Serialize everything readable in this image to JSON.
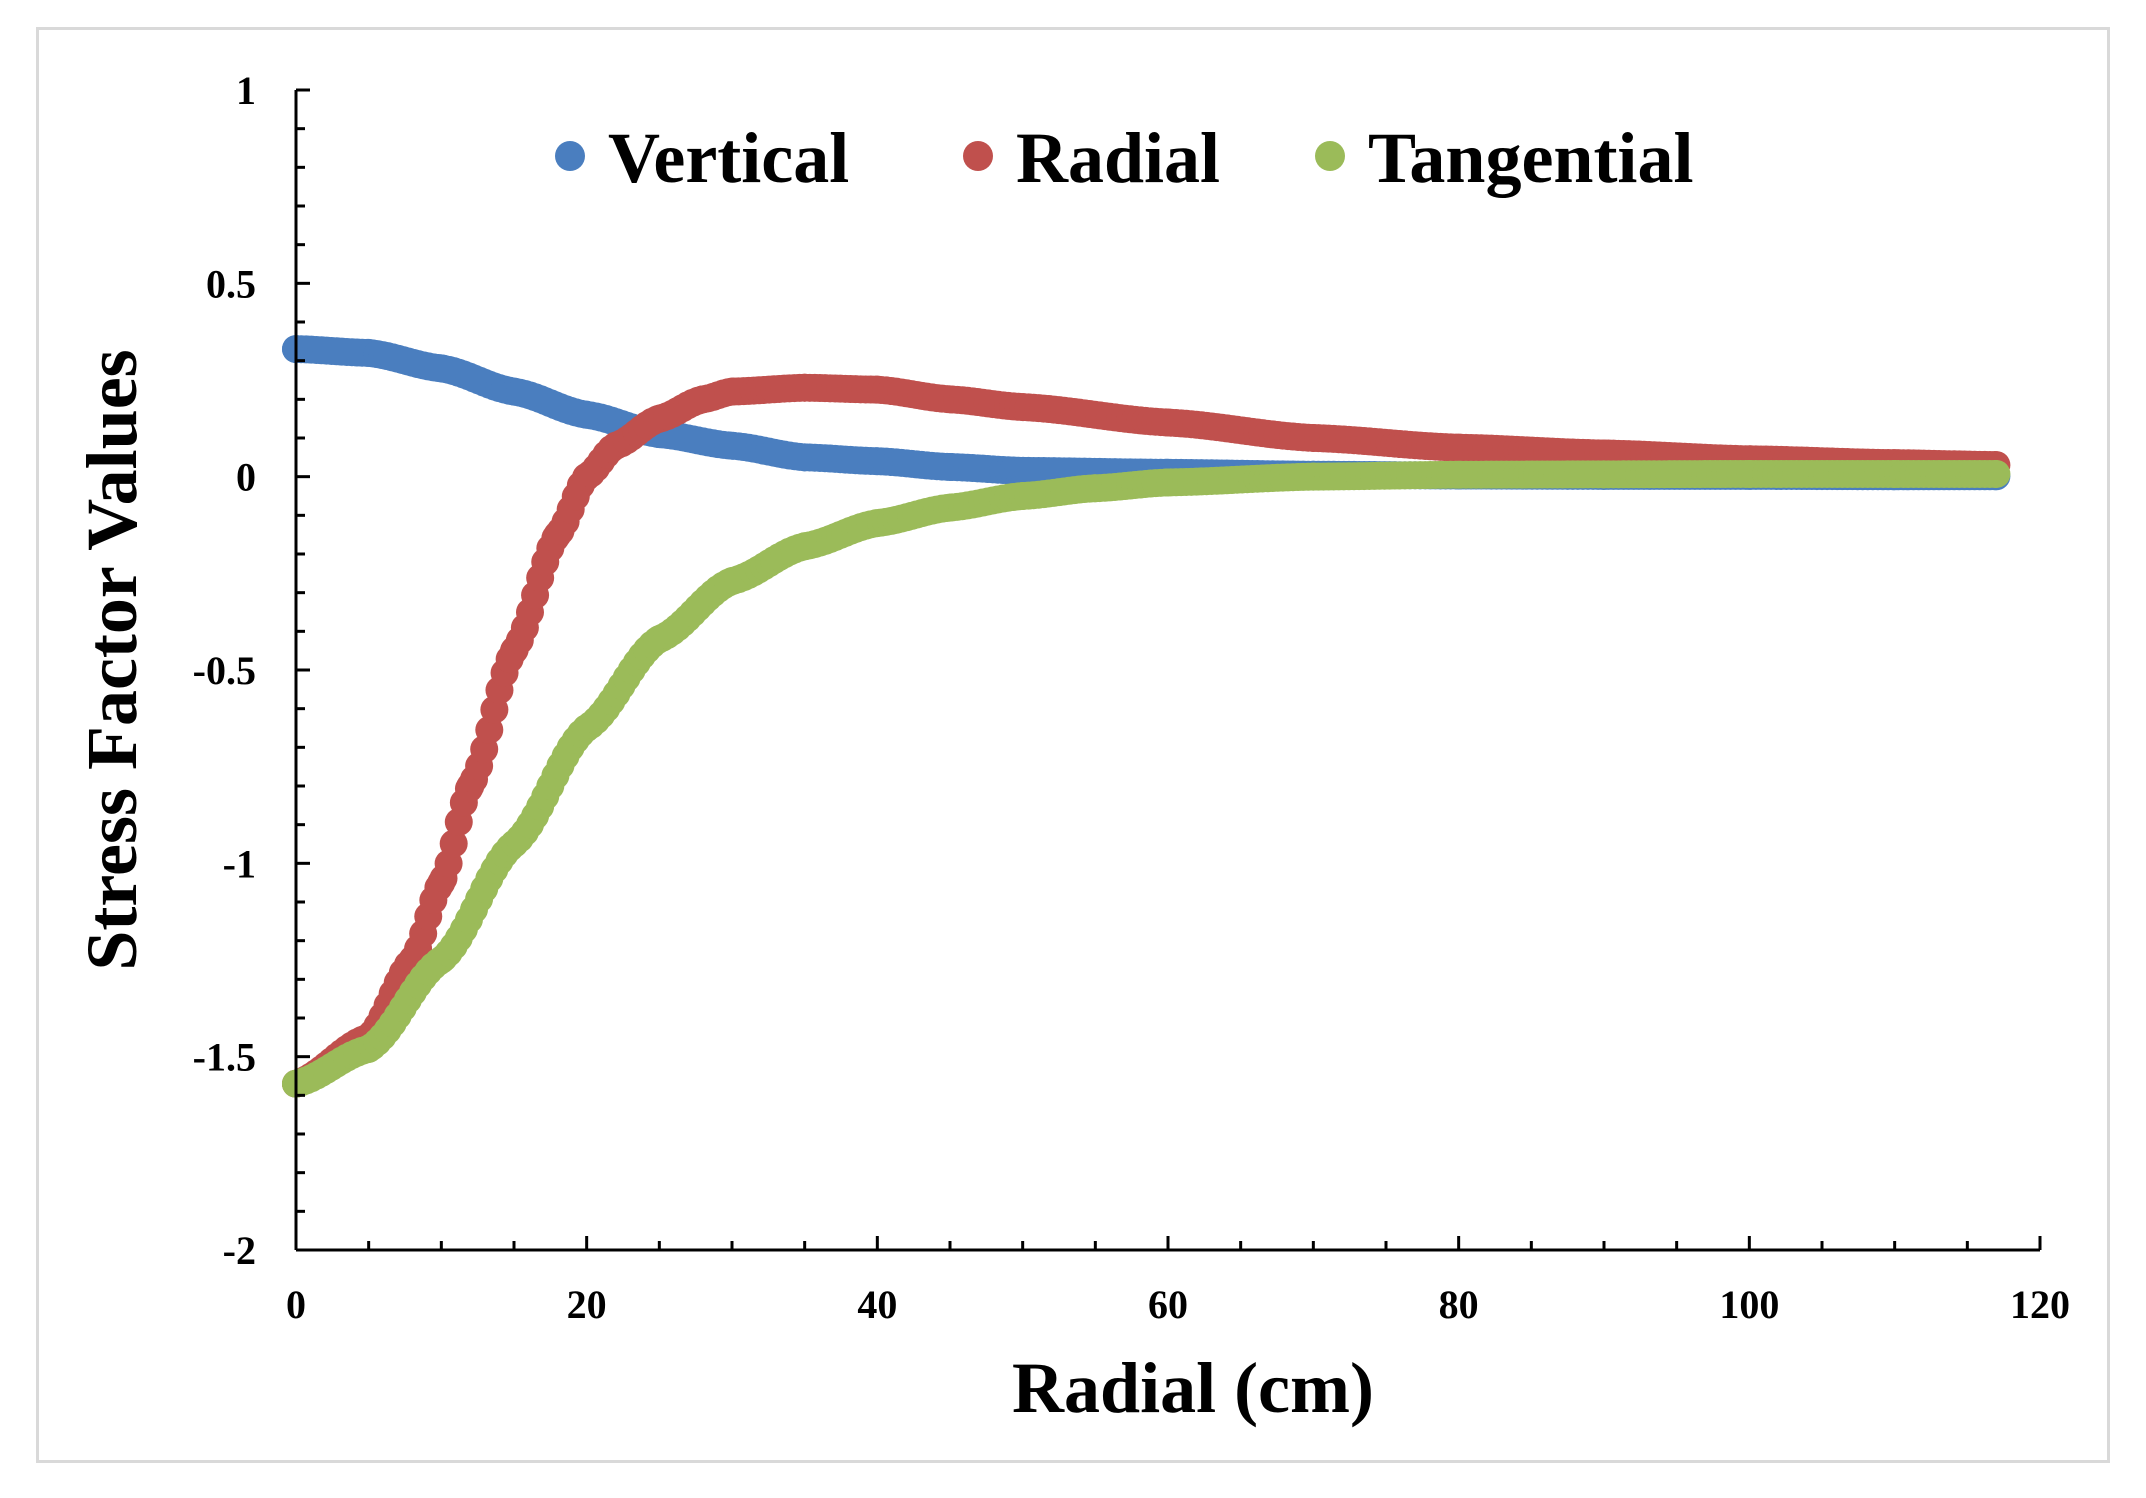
{
  "chart_data": {
    "type": "scatter",
    "title": "",
    "xlabel": "Radial (cm)",
    "ylabel": "Stress Factor Values",
    "xlim": [
      0,
      120
    ],
    "ylim": [
      -2,
      1
    ],
    "xticks": [
      "0",
      "20",
      "40",
      "60",
      "80",
      "100",
      "120"
    ],
    "yticks": [
      "1",
      "0.5",
      "0",
      "-0.5",
      "-1",
      "-1.5",
      "-2"
    ],
    "legend_position": "top-center",
    "series": [
      {
        "name": "Vertical",
        "color": "#4a7ebf",
        "x": [
          0,
          5,
          10,
          15,
          20,
          25,
          30,
          35,
          40,
          45,
          50,
          60,
          70,
          80,
          90,
          100,
          110,
          117
        ],
        "values": [
          0.33,
          0.32,
          0.28,
          0.22,
          0.16,
          0.11,
          0.08,
          0.05,
          0.04,
          0.025,
          0.015,
          0.01,
          0.005,
          0.003,
          0.002,
          0.002,
          0.001,
          0.001
        ]
      },
      {
        "name": "Radial",
        "color": "#c0504d",
        "x": [
          0,
          5,
          8,
          10,
          12,
          15,
          18,
          20,
          22,
          25,
          28,
          30,
          35,
          40,
          45,
          50,
          60,
          70,
          80,
          90,
          100,
          110,
          117
        ],
        "values": [
          -1.57,
          -1.45,
          -1.25,
          -1.05,
          -0.8,
          -0.45,
          -0.15,
          0.0,
          0.08,
          0.15,
          0.2,
          0.22,
          0.23,
          0.225,
          0.2,
          0.18,
          0.14,
          0.1,
          0.075,
          0.06,
          0.045,
          0.035,
          0.03
        ]
      },
      {
        "name": "Tangential",
        "color": "#9bbb59",
        "x": [
          0,
          5,
          10,
          15,
          20,
          25,
          30,
          35,
          40,
          45,
          50,
          55,
          60,
          70,
          80,
          90,
          100,
          110,
          117
        ],
        "values": [
          -1.57,
          -1.48,
          -1.25,
          -0.95,
          -0.65,
          -0.42,
          -0.27,
          -0.18,
          -0.12,
          -0.08,
          -0.05,
          -0.03,
          -0.015,
          0.0,
          0.005,
          0.006,
          0.007,
          0.007,
          0.007
        ]
      }
    ]
  }
}
